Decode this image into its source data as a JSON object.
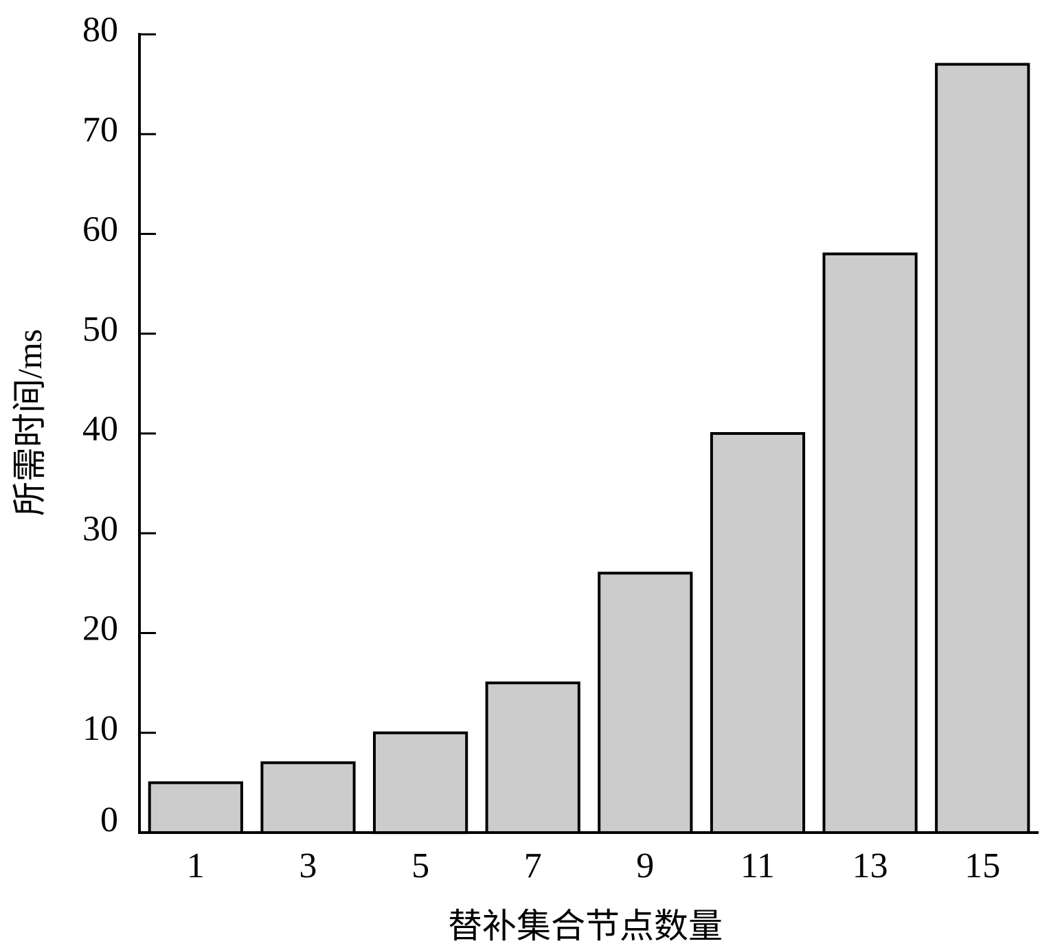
{
  "chart_data": {
    "type": "bar",
    "title": "",
    "xlabel": "替补集合节点数量",
    "ylabel": "所需时间/ms",
    "categories": [
      "1",
      "3",
      "5",
      "7",
      "9",
      "11",
      "13",
      "15"
    ],
    "values": [
      5,
      7,
      10,
      15,
      26,
      40,
      58,
      77
    ],
    "ylim": [
      0,
      80
    ],
    "yticks": [
      0,
      10,
      20,
      30,
      40,
      50,
      60,
      70,
      80
    ],
    "ytick_labels": [
      "0",
      "10",
      "20",
      "30",
      "40",
      "50",
      "60",
      "70",
      "80"
    ],
    "grid": false,
    "legend": "none",
    "colors": {
      "bar_fill": "#cccccc",
      "bar_stroke": "#000000",
      "axis": "#000000"
    }
  }
}
